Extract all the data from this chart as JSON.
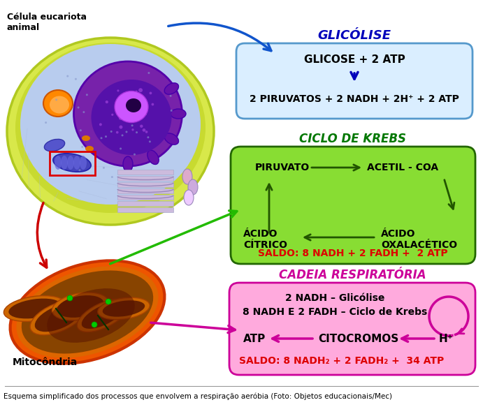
{
  "fig_width": 6.91,
  "fig_height": 5.83,
  "dpi": 100,
  "bg_color": "#ffffff",
  "caption": "Esquema simplificado dos processos que envolvem a respiração aeróbia (Foto: Objetos educacionais/Mec)",
  "glicolise_title": "GLICÓLISE",
  "glicolise_title_color": "#0000bb",
  "glicolise_box_color": "#daeeff",
  "glicolise_box_edge": "#5599cc",
  "glicolise_line1": "GLICOSE + 2 ATP",
  "glicolise_line2": "2 PIRUVATOS + 2 NADH + 2H⁺ + 2 ATP",
  "glicolise_arrow_color": "#0000bb",
  "krebs_title": "CICLO DE KREBS",
  "krebs_title_color": "#007700",
  "krebs_box_color": "#88dd33",
  "krebs_box_edge": "#226600",
  "krebs_text_piruvato": "PIRUVATO",
  "krebs_text_acetil": "ACETIL - COA",
  "krebs_text_acido_citrico": "ÁCIDO\nCÍTRICO",
  "krebs_text_acido_oxalacetico": "ÁCIDO\nOXALACÉTICO",
  "krebs_saldo": "SALDO: 8 NADH + 2 FADH +  2 ATP",
  "krebs_saldo_color": "#dd0000",
  "krebs_arrow_color": "#225500",
  "cadeia_title": "CADEIA RESPIRATÓRIA",
  "cadeia_title_color": "#cc0099",
  "cadeia_box_color": "#ffaadd",
  "cadeia_box_edge": "#cc0099",
  "cadeia_line1": "2 NADH – Glicólise",
  "cadeia_line2": "8 NADH E 2 FADH – Ciclo de Krebs",
  "cadeia_atp": "ATP",
  "cadeia_citocromos": "CITOCROMOS",
  "cadeia_h": "H⁺",
  "cadeia_saldo": "SALDO: 8 NADH₂ + 2 FADH₂ +  34 ATP",
  "cadeia_saldo_color": "#dd0000",
  "cadeia_arrow_color": "#cc0099",
  "celula_label": "Célula eucariota\nanimal",
  "mitocondria_label": "Mitocôndria",
  "green_arrow_color": "#22bb00",
  "red_arrow_color": "#cc0000",
  "blue_arrow_color": "#1155cc"
}
